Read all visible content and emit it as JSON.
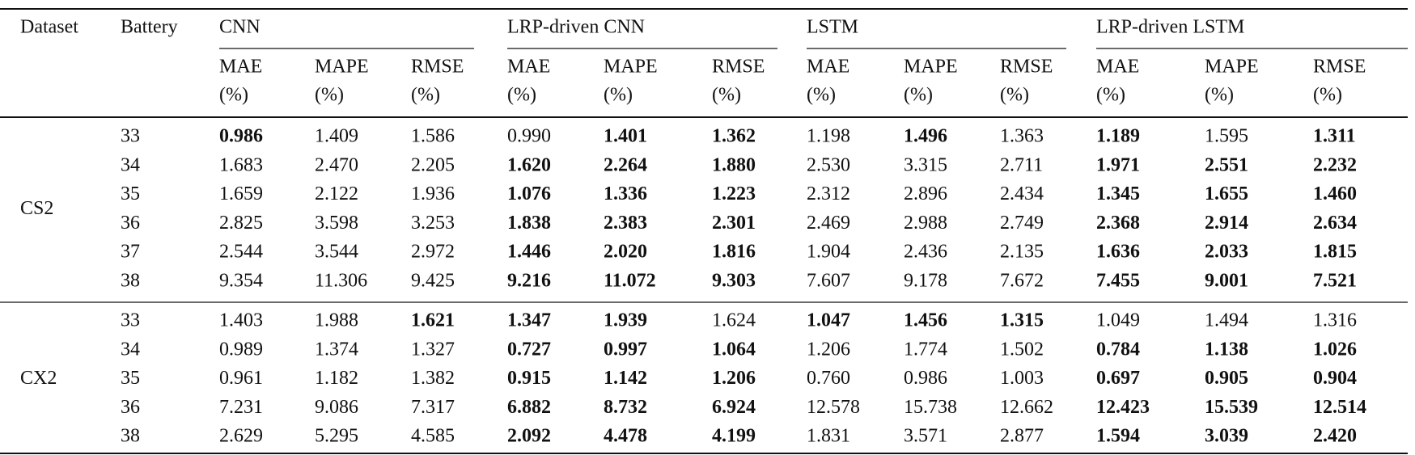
{
  "header": {
    "columns": [
      "Dataset",
      "Battery"
    ],
    "groups": [
      "CNN",
      "LRP-driven CNN",
      "LSTM",
      "LRP-driven LSTM"
    ],
    "subheaders": [
      [
        "MAE",
        "(%)"
      ],
      [
        "MAPE",
        "(%)"
      ],
      [
        "RMSE",
        "(%)"
      ],
      [
        "MAE",
        "(%)"
      ],
      [
        "MAPE",
        "(%)"
      ],
      [
        "RMSE",
        "(%)"
      ],
      [
        "MAE",
        "(%)"
      ],
      [
        "MAPE",
        "(%)"
      ],
      [
        "RMSE",
        "(%)"
      ],
      [
        "MAE",
        "(%)"
      ],
      [
        "MAPE",
        "(%)"
      ],
      [
        "RMSE",
        "(%)"
      ]
    ]
  },
  "sections": [
    {
      "dataset": "CS2",
      "rows": [
        {
          "battery": "33",
          "values": [
            "0.986",
            "1.409",
            "1.586",
            "0.990",
            "1.401",
            "1.362",
            "1.198",
            "1.496",
            "1.363",
            "1.189",
            "1.595",
            "1.311"
          ],
          "bold": [
            0,
            4,
            5,
            7,
            9,
            11
          ]
        },
        {
          "battery": "34",
          "values": [
            "1.683",
            "2.470",
            "2.205",
            "1.620",
            "2.264",
            "1.880",
            "2.530",
            "3.315",
            "2.711",
            "1.971",
            "2.551",
            "2.232"
          ],
          "bold": [
            3,
            4,
            5,
            9,
            10,
            11
          ]
        },
        {
          "battery": "35",
          "values": [
            "1.659",
            "2.122",
            "1.936",
            "1.076",
            "1.336",
            "1.223",
            "2.312",
            "2.896",
            "2.434",
            "1.345",
            "1.655",
            "1.460"
          ],
          "bold": [
            3,
            4,
            5,
            9,
            10,
            11
          ]
        },
        {
          "battery": "36",
          "values": [
            "2.825",
            "3.598",
            "3.253",
            "1.838",
            "2.383",
            "2.301",
            "2.469",
            "2.988",
            "2.749",
            "2.368",
            "2.914",
            "2.634"
          ],
          "bold": [
            3,
            4,
            5,
            9,
            10,
            11
          ]
        },
        {
          "battery": "37",
          "values": [
            "2.544",
            "3.544",
            "2.972",
            "1.446",
            "2.020",
            "1.816",
            "1.904",
            "2.436",
            "2.135",
            "1.636",
            "2.033",
            "1.815"
          ],
          "bold": [
            3,
            4,
            5,
            9,
            10,
            11
          ]
        },
        {
          "battery": "38",
          "values": [
            "9.354",
            "11.306",
            "9.425",
            "9.216",
            "11.072",
            "9.303",
            "7.607",
            "9.178",
            "7.672",
            "7.455",
            "9.001",
            "7.521"
          ],
          "bold": [
            3,
            4,
            5,
            9,
            10,
            11
          ]
        }
      ]
    },
    {
      "dataset": "CX2",
      "rows": [
        {
          "battery": "33",
          "values": [
            "1.403",
            "1.988",
            "1.621",
            "1.347",
            "1.939",
            "1.624",
            "1.047",
            "1.456",
            "1.315",
            "1.049",
            "1.494",
            "1.316"
          ],
          "bold": [
            2,
            3,
            4,
            6,
            7,
            8
          ]
        },
        {
          "battery": "34",
          "values": [
            "0.989",
            "1.374",
            "1.327",
            "0.727",
            "0.997",
            "1.064",
            "1.206",
            "1.774",
            "1.502",
            "0.784",
            "1.138",
            "1.026"
          ],
          "bold": [
            3,
            4,
            5,
            9,
            10,
            11
          ]
        },
        {
          "battery": "35",
          "values": [
            "0.961",
            "1.182",
            "1.382",
            "0.915",
            "1.142",
            "1.206",
            "0.760",
            "0.986",
            "1.003",
            "0.697",
            "0.905",
            "0.904"
          ],
          "bold": [
            3,
            4,
            5,
            9,
            10,
            11
          ]
        },
        {
          "battery": "36",
          "values": [
            "7.231",
            "9.086",
            "7.317",
            "6.882",
            "8.732",
            "6.924",
            "12.578",
            "15.738",
            "12.662",
            "12.423",
            "15.539",
            "12.514"
          ],
          "bold": [
            3,
            4,
            5,
            9,
            10,
            11
          ]
        },
        {
          "battery": "38",
          "values": [
            "2.629",
            "5.295",
            "4.585",
            "2.092",
            "4.478",
            "4.199",
            "1.831",
            "3.571",
            "2.877",
            "1.594",
            "3.039",
            "2.420"
          ],
          "bold": [
            3,
            4,
            5,
            9,
            10,
            11
          ]
        }
      ]
    }
  ]
}
